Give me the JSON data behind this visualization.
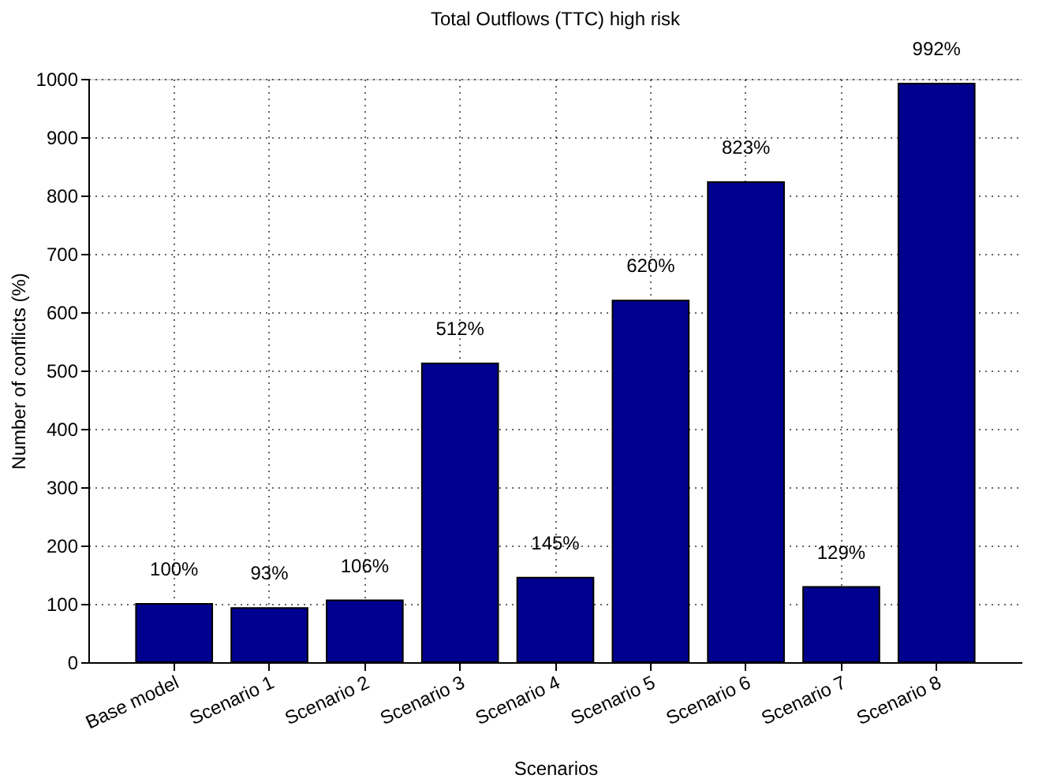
{
  "chart_data": {
    "type": "bar",
    "title": "Total Outflows (TTC) high risk",
    "xlabel": "Scenarios",
    "ylabel": "Number of conflicts (%)",
    "categories": [
      "Base model",
      "Scenario 1",
      "Scenario 2",
      "Scenario 3",
      "Scenario 4",
      "Scenario 5",
      "Scenario 6",
      "Scenario 7",
      "Scenario 8"
    ],
    "values": [
      100,
      93,
      106,
      512,
      145,
      620,
      823,
      129,
      992
    ],
    "value_labels": [
      "100%",
      "93%",
      "106%",
      "512%",
      "145%",
      "620%",
      "823%",
      "129%",
      "992%"
    ],
    "color": "#00008f",
    "ylim": [
      0,
      1000
    ],
    "yticks": [
      0,
      100,
      200,
      300,
      400,
      500,
      600,
      700,
      800,
      900,
      1000
    ],
    "grid": true
  }
}
